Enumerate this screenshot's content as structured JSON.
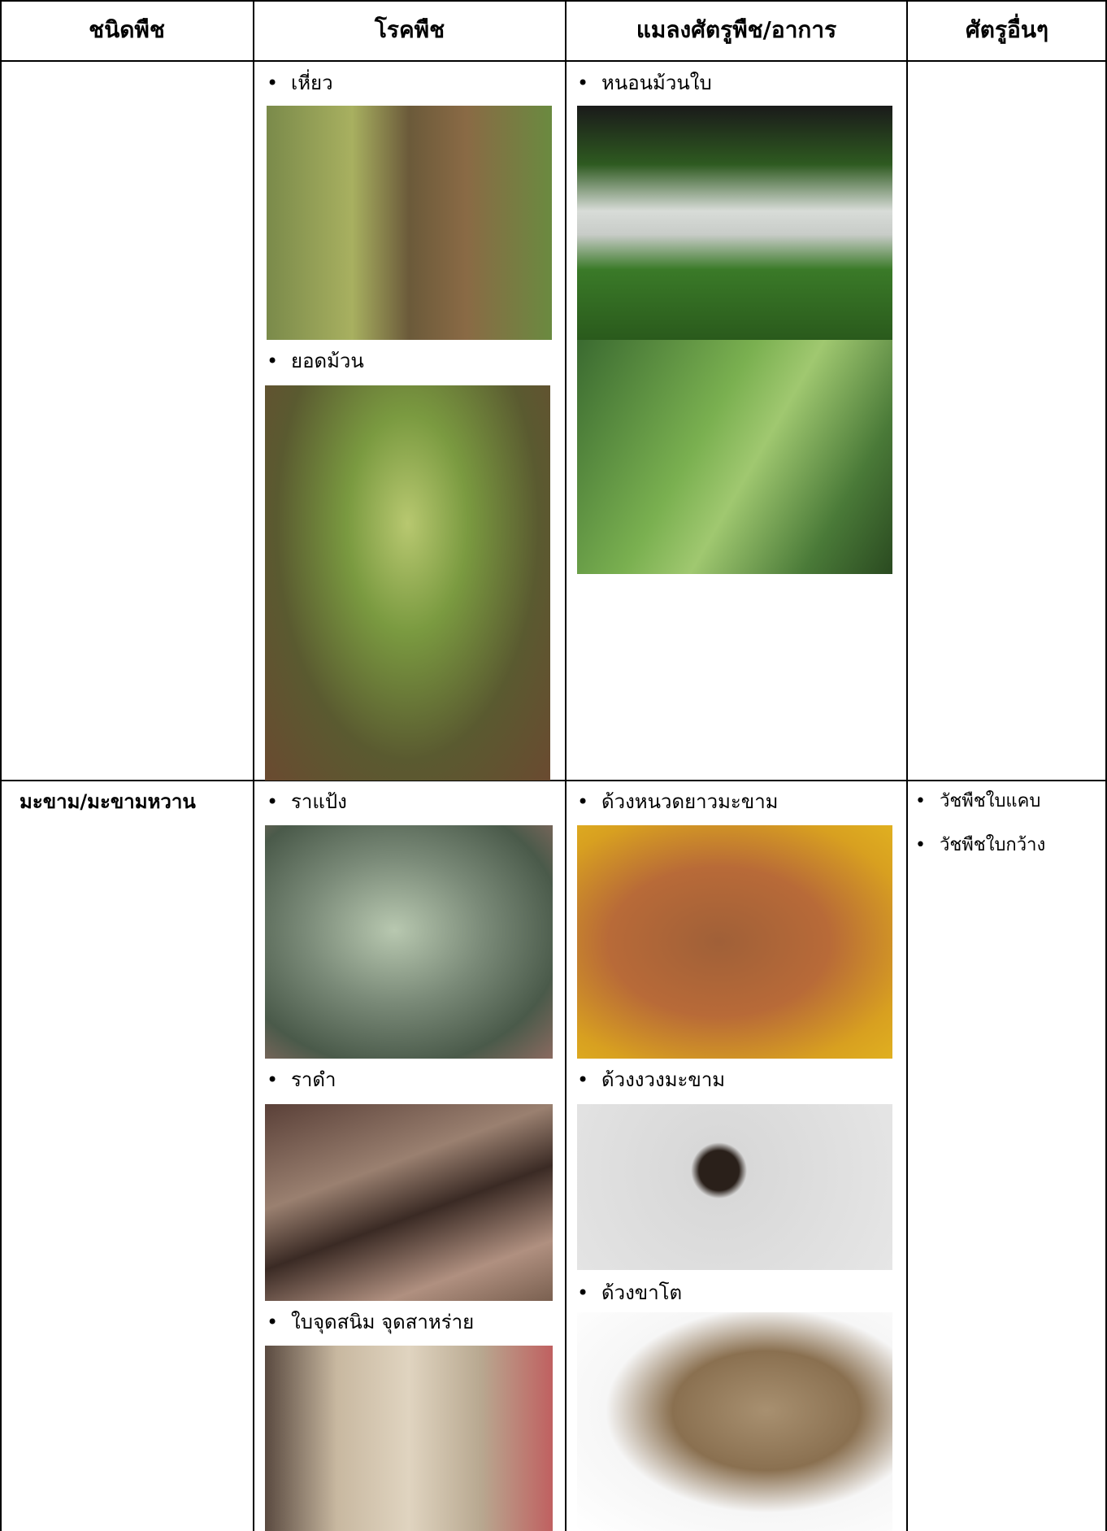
{
  "table": {
    "headers": [
      "ชนิดพืช",
      "โรคพืช",
      "แมลงศัตรูพืช/อาการ",
      "ศัตรูอื่นๆ"
    ],
    "rows": [
      {
        "diseases": [
          "เหี่ยว",
          "ยอดม้วน"
        ],
        "insects": [
          "หนอนม้วนใบ"
        ]
      },
      {
        "plant": "มะขาม/มะขามหวาน",
        "diseases": [
          "ราแป้ง",
          "ราดำ",
          "ใบจุดสนิม จุดสาหร่าย"
        ],
        "insects": [
          "ด้วงหนวดยาวมะขาม",
          "ด้วงงวงมะขาม",
          "ด้วงขาโต"
        ],
        "others": [
          "วัชพืชใบแคบ",
          "วัชพืชใบกว้าง"
        ]
      }
    ]
  }
}
